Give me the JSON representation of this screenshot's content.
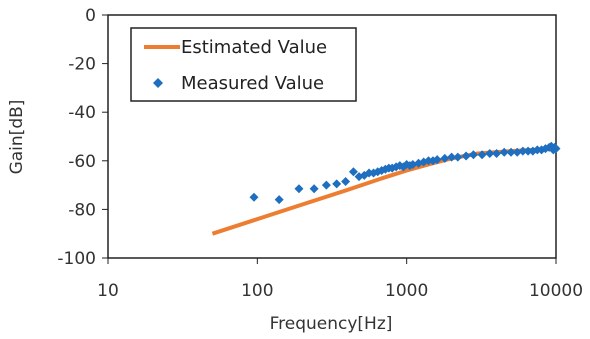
{
  "chart_data": {
    "type": "scatter",
    "xlabel": "Frequency[Hz]",
    "ylabel": "Gain[dB]",
    "x_scale": "log",
    "xlim": [
      10,
      10000
    ],
    "ylim": [
      -100,
      0
    ],
    "x_ticks": [
      10,
      100,
      1000,
      10000
    ],
    "x_tick_labels": [
      "10",
      "100",
      "1000",
      "10000"
    ],
    "y_ticks": [
      0,
      -20,
      -40,
      -60,
      -80,
      -100
    ],
    "y_tick_labels": [
      "0",
      "-20",
      "-40",
      "-60",
      "-80",
      "-100"
    ],
    "grid": false,
    "legend_position": "top-left",
    "series": [
      {
        "name": "Estimated Value",
        "kind": "line",
        "color": "#ED7D31",
        "x": [
          50,
          100,
          200,
          400,
          700,
          1000,
          1500,
          2000,
          3000,
          5000,
          7000,
          10000
        ],
        "y": [
          -90,
          -84,
          -78,
          -72,
          -67,
          -64,
          -61,
          -59,
          -57,
          -56,
          -55.5,
          -55
        ]
      },
      {
        "name": "Measured Value",
        "kind": "scatter",
        "marker": "diamond",
        "color": "#1F6FC0",
        "x": [
          95,
          140,
          190,
          240,
          290,
          340,
          390,
          440,
          480,
          520,
          560,
          600,
          640,
          680,
          720,
          760,
          800,
          850,
          900,
          950,
          1000,
          1050,
          1100,
          1200,
          1300,
          1400,
          1500,
          1600,
          1800,
          2000,
          2200,
          2500,
          2800,
          3200,
          3600,
          4000,
          4500,
          5000,
          5500,
          6000,
          6500,
          7000,
          7500,
          8000,
          8500,
          9000,
          9300,
          9600,
          9800,
          10000
        ],
        "y": [
          -75,
          -76,
          -71.5,
          -71.5,
          -70,
          -69.5,
          -68.5,
          -64.5,
          -66.5,
          -66,
          -65,
          -65,
          -64.5,
          -64,
          -63.5,
          -63,
          -63,
          -62.5,
          -62,
          -62.5,
          -61.5,
          -62,
          -61.5,
          -61,
          -60.5,
          -60,
          -60,
          -59.5,
          -59,
          -58.5,
          -58.5,
          -58,
          -57.5,
          -57.5,
          -57,
          -57,
          -56.5,
          -56.5,
          -56.5,
          -56,
          -56,
          -56,
          -55.5,
          -55.5,
          -55,
          -54.5,
          -54,
          -55.5,
          -54.5,
          -55
        ]
      }
    ]
  }
}
